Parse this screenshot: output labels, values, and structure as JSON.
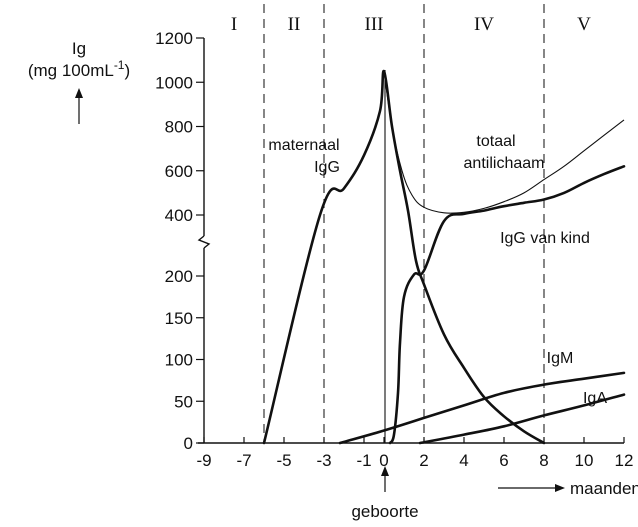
{
  "chart_data": {
    "type": "line",
    "title": "",
    "y_label": {
      "main": "Ig",
      "unit": "(mg 100mL",
      "exp": "-1",
      "close": ")"
    },
    "x_label": "maanden",
    "birth_label": "geboorte",
    "x_ticks": [
      "-9",
      "-7",
      "-5",
      "-3",
      "-1",
      "0",
      "2",
      "4",
      "6",
      "8",
      "10",
      "12"
    ],
    "x_tick_values": [
      -9,
      -7,
      -5,
      -3,
      -1,
      0,
      2,
      4,
      6,
      8,
      10,
      12
    ],
    "y_ticks_upper": [
      "400",
      "600",
      "800",
      "1000",
      "1200"
    ],
    "y_ticks_lower": [
      "0",
      "50",
      "100",
      "150",
      "200"
    ],
    "y_tick_values_upper": [
      400,
      600,
      800,
      1000,
      1200
    ],
    "y_tick_values_lower": [
      0,
      50,
      100,
      150,
      200
    ],
    "xlim": [
      -9,
      12
    ],
    "ylim_lower": [
      0,
      200
    ],
    "ylim_upper": [
      400,
      1200
    ],
    "axis_break": "between 200 and 400 (different scales above and below the break)",
    "periods": [
      {
        "label": "I",
        "x_range": [
          -9,
          -6
        ]
      },
      {
        "label": "II",
        "x_range": [
          -6,
          -3
        ]
      },
      {
        "label": "III",
        "x_range": [
          -3,
          2
        ]
      },
      {
        "label": "IV",
        "x_range": [
          2,
          8
        ]
      },
      {
        "label": "V",
        "x_range": [
          8,
          12
        ]
      }
    ],
    "period_boundaries": [
      -6,
      -3,
      2,
      8
    ],
    "series": [
      {
        "name": "maternaal IgG",
        "label_lines": [
          "maternaal",
          "IgG"
        ],
        "points": [
          [
            -6,
            0
          ],
          [
            -3.2,
            400
          ],
          [
            -2,
            520
          ],
          [
            -1,
            670
          ],
          [
            -0.2,
            870
          ],
          [
            0,
            1050
          ],
          [
            0.4,
            800
          ],
          [
            0.8,
            600
          ],
          [
            1.2,
            420
          ],
          [
            1.6,
            250
          ],
          [
            2,
            190
          ],
          [
            3,
            130
          ],
          [
            4,
            90
          ],
          [
            5,
            55
          ],
          [
            6,
            32
          ],
          [
            7,
            14
          ],
          [
            8,
            0
          ]
        ]
      },
      {
        "name": "totaal antilichaam",
        "label_lines": [
          "totaal",
          "antilichaam"
        ],
        "points": [
          [
            0,
            1050
          ],
          [
            0.4,
            800
          ],
          [
            0.9,
            600
          ],
          [
            1.4,
            490
          ],
          [
            2,
            435
          ],
          [
            3,
            410
          ],
          [
            4,
            412
          ],
          [
            5,
            430
          ],
          [
            6,
            460
          ],
          [
            7,
            500
          ],
          [
            8,
            560
          ],
          [
            9,
            620
          ],
          [
            10,
            690
          ],
          [
            11,
            760
          ],
          [
            12,
            830
          ]
        ]
      },
      {
        "name": "IgG van kind",
        "label_lines": [
          "IgG van kind"
        ],
        "points": [
          [
            0.3,
            0
          ],
          [
            0.5,
            10
          ],
          [
            0.7,
            60
          ],
          [
            0.8,
            120
          ],
          [
            1,
            175
          ],
          [
            1.5,
            205
          ],
          [
            2,
            218
          ],
          [
            3,
            380
          ],
          [
            4,
            405
          ],
          [
            5,
            420
          ],
          [
            6,
            440
          ],
          [
            7,
            455
          ],
          [
            8,
            470
          ],
          [
            9,
            500
          ],
          [
            10,
            545
          ],
          [
            11,
            585
          ],
          [
            12,
            620
          ]
        ]
      },
      {
        "name": "IgM",
        "label_lines": [
          "IgM"
        ],
        "points": [
          [
            -2.2,
            0
          ],
          [
            0,
            15
          ],
          [
            2,
            30
          ],
          [
            4,
            45
          ],
          [
            6,
            60
          ],
          [
            8,
            70
          ],
          [
            10,
            77
          ],
          [
            12,
            84
          ]
        ]
      },
      {
        "name": "IgA",
        "label_lines": [
          "IgA"
        ],
        "points": [
          [
            1.8,
            0
          ],
          [
            4,
            10
          ],
          [
            6,
            20
          ],
          [
            8,
            33
          ],
          [
            10,
            45
          ],
          [
            12,
            58
          ]
        ]
      }
    ],
    "legend": "none (curves labeled directly on the chart)",
    "grid": false
  }
}
